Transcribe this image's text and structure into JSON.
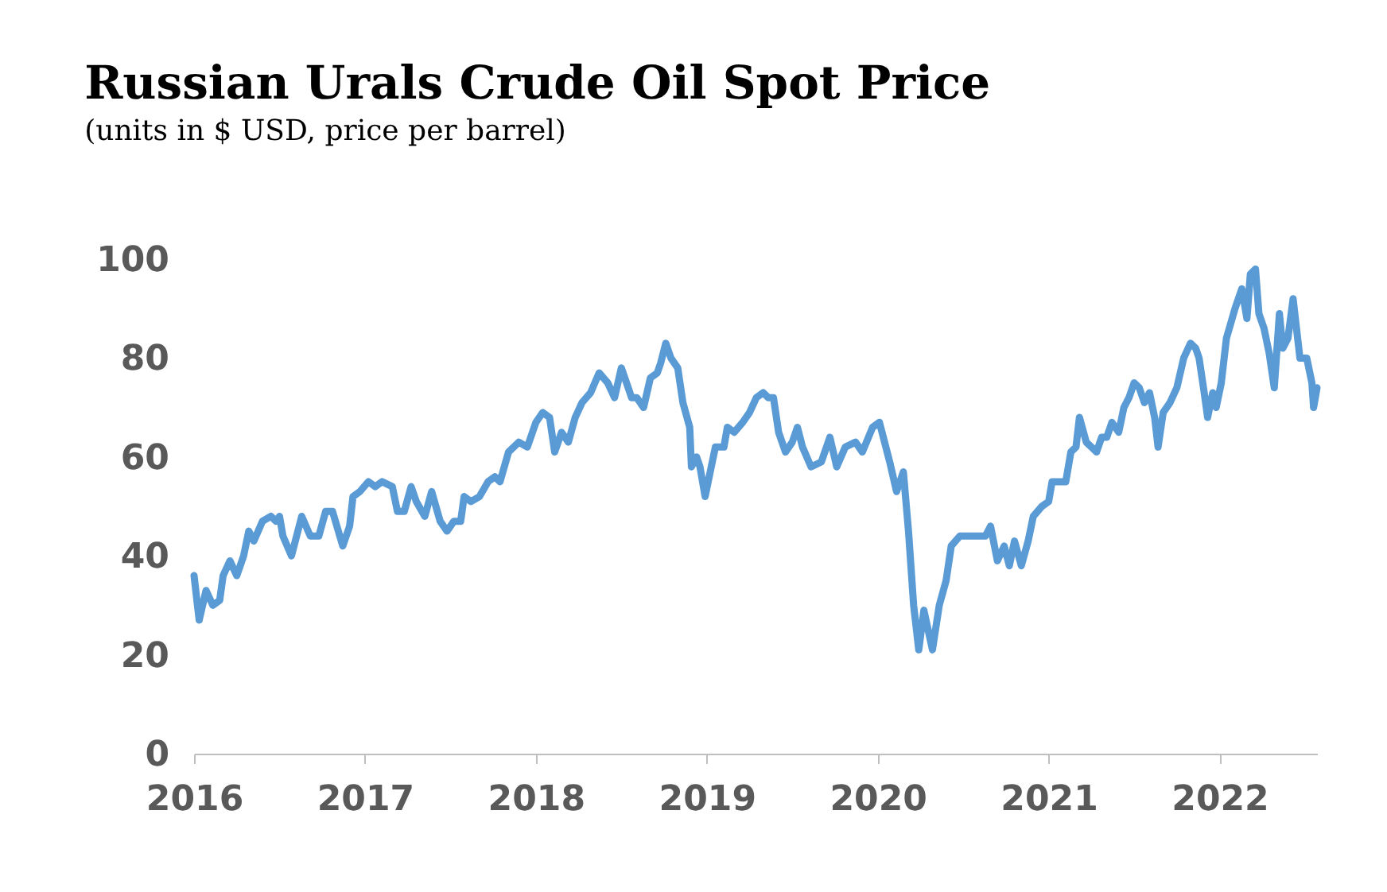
{
  "chart_data": {
    "type": "line",
    "title": "Russian Urals Crude Oil Spot Price",
    "subtitle": "(units in $ USD, price per barrel)",
    "xlim": [
      2016,
      2022.57
    ],
    "xticks": [
      2016,
      2017,
      2018,
      2019,
      2020,
      2021,
      2022
    ],
    "ylim": [
      0,
      100
    ],
    "yticks": [
      0,
      20,
      40,
      60,
      80,
      100
    ],
    "grid": false,
    "legend": false,
    "marker": "none",
    "line_style": "solid",
    "series": [
      {
        "color": "#5b9bd5",
        "x": [
          2016.0,
          2016.03,
          2016.07,
          2016.11,
          2016.15,
          2016.17,
          2016.21,
          2016.25,
          2016.29,
          2016.32,
          2016.35,
          2016.4,
          2016.45,
          2016.48,
          2016.5,
          2016.52,
          2016.57,
          2016.63,
          2016.68,
          2016.73,
          2016.77,
          2016.81,
          2016.87,
          2016.91,
          2016.93,
          2016.97,
          2017.02,
          2017.06,
          2017.1,
          2017.16,
          2017.19,
          2017.23,
          2017.27,
          2017.3,
          2017.35,
          2017.39,
          2017.44,
          2017.48,
          2017.52,
          2017.56,
          2017.58,
          2017.62,
          2017.67,
          2017.72,
          2017.76,
          2017.79,
          2017.84,
          2017.9,
          2017.95,
          2018.0,
          2018.04,
          2018.08,
          2018.11,
          2018.15,
          2018.19,
          2018.23,
          2018.27,
          2018.32,
          2018.37,
          2018.42,
          2018.46,
          2018.5,
          2018.56,
          2018.59,
          2018.63,
          2018.67,
          2018.71,
          2018.73,
          2018.76,
          2018.79,
          2018.83,
          2018.86,
          2018.9,
          2018.91,
          2018.94,
          2018.96,
          2018.99,
          2019.02,
          2019.05,
          2019.1,
          2019.12,
          2019.16,
          2019.21,
          2019.25,
          2019.29,
          2019.33,
          2019.36,
          2019.39,
          2019.42,
          2019.46,
          2019.5,
          2019.53,
          2019.56,
          2019.61,
          2019.67,
          2019.72,
          2019.76,
          2019.81,
          2019.87,
          2019.91,
          2019.97,
          2020.01,
          2020.04,
          2020.07,
          2020.11,
          2020.15,
          2020.18,
          2020.21,
          2020.24,
          2020.27,
          2020.32,
          2020.36,
          2020.4,
          2020.43,
          2020.48,
          2020.54,
          2020.63,
          2020.66,
          2020.7,
          2020.74,
          2020.77,
          2020.8,
          2020.84,
          2020.88,
          2020.91,
          2020.96,
          2021.0,
          2021.02,
          2021.06,
          2021.1,
          2021.13,
          2021.16,
          2021.18,
          2021.22,
          2021.25,
          2021.28,
          2021.31,
          2021.34,
          2021.37,
          2021.41,
          2021.44,
          2021.47,
          2021.5,
          2021.53,
          2021.56,
          2021.59,
          2021.62,
          2021.64,
          2021.67,
          2021.71,
          2021.75,
          2021.79,
          2021.83,
          2021.86,
          2021.88,
          2021.91,
          2021.93,
          2021.96,
          2021.98,
          2022.01,
          2022.04,
          2022.09,
          2022.13,
          2022.16,
          2022.18,
          2022.21,
          2022.23,
          2022.26,
          2022.29,
          2022.32,
          2022.35,
          2022.37,
          2022.4,
          2022.43,
          2022.47,
          2022.51,
          2022.54,
          2022.55,
          2022.57
        ],
        "values": [
          36,
          27,
          33,
          30,
          31,
          36,
          39,
          36,
          40,
          45,
          43,
          47,
          48,
          47,
          48,
          44,
          40,
          48,
          44,
          44,
          49,
          49,
          42,
          46,
          52,
          53,
          55,
          54,
          55,
          54,
          49,
          49,
          54,
          51,
          48,
          53,
          47,
          45,
          47,
          47,
          52,
          51,
          52,
          55,
          56,
          55,
          61,
          63,
          62,
          67,
          69,
          68,
          61,
          65,
          63,
          68,
          71,
          73,
          77,
          75,
          72,
          78,
          72,
          72,
          70,
          76,
          77,
          79,
          83,
          80,
          78,
          71,
          66,
          58,
          60,
          58,
          52,
          57,
          62,
          62,
          66,
          65,
          67,
          69,
          72,
          73,
          72,
          72,
          65,
          61,
          63,
          66,
          62,
          58,
          59,
          64,
          58,
          62,
          63,
          61,
          66,
          67,
          63,
          59,
          53,
          57,
          45,
          30,
          21,
          29,
          21,
          30,
          35,
          42,
          44,
          44,
          44,
          46,
          39,
          42,
          38,
          43,
          38,
          43,
          48,
          50,
          51,
          55,
          55,
          55,
          61,
          62,
          68,
          63,
          62,
          61,
          64,
          64,
          67,
          65,
          70,
          72,
          75,
          74,
          71,
          73,
          68,
          62,
          69,
          71,
          74,
          80,
          83,
          82,
          80,
          73,
          68,
          73,
          70,
          75,
          84,
          90,
          94,
          88,
          97,
          98,
          89,
          86,
          81,
          74,
          89,
          82,
          84,
          92,
          80,
          80,
          75,
          70,
          74
        ]
      }
    ]
  }
}
